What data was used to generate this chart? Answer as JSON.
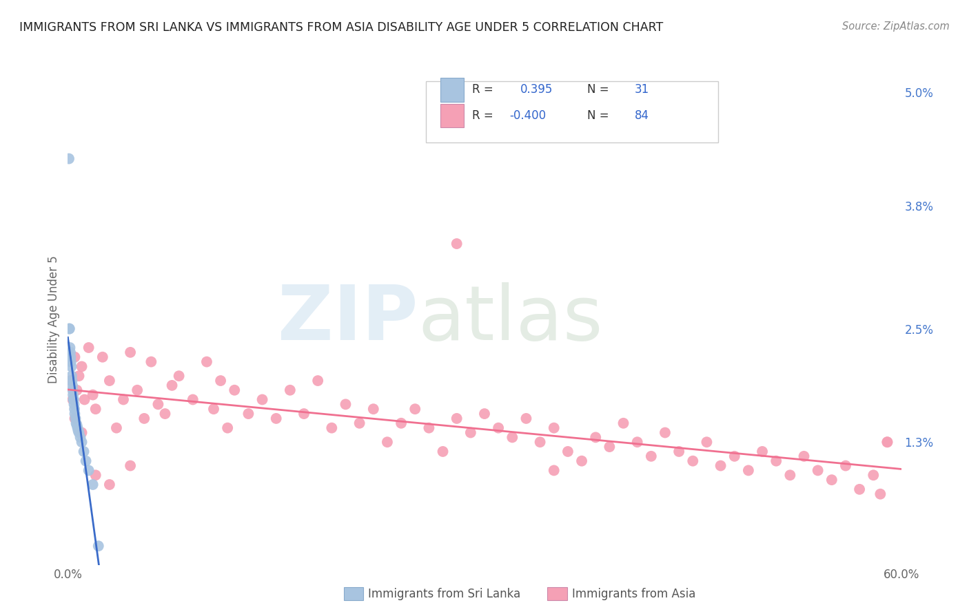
{
  "title": "IMMIGRANTS FROM SRI LANKA VS IMMIGRANTS FROM ASIA DISABILITY AGE UNDER 5 CORRELATION CHART",
  "source": "Source: ZipAtlas.com",
  "ylabel": "Disability Age Under 5",
  "xlim": [
    0.0,
    0.6
  ],
  "ylim": [
    0.0,
    0.052
  ],
  "xtick_positions": [
    0.0,
    0.1,
    0.2,
    0.3,
    0.4,
    0.5,
    0.6
  ],
  "xticklabels": [
    "0.0%",
    "",
    "",
    "",
    "",
    "",
    "60.0%"
  ],
  "ytick_positions": [
    0.0,
    0.013,
    0.025,
    0.038,
    0.05
  ],
  "yticklabels_right": [
    "",
    "1.3%",
    "2.5%",
    "3.8%",
    "5.0%"
  ],
  "R_sri_lanka": 0.395,
  "N_sri_lanka": 31,
  "R_asia": -0.4,
  "N_asia": 84,
  "sri_lanka_color": "#a8c4e0",
  "asia_color": "#f5a0b5",
  "trend_sri_lanka_color": "#3a6bc9",
  "trend_asia_color": "#f07090",
  "background_color": "#ffffff",
  "grid_color": "#e0e0e0",
  "sri_lanka_x": [
    0.0008,
    0.001,
    0.0012,
    0.0015,
    0.0018,
    0.002,
    0.0022,
    0.0025,
    0.0028,
    0.003,
    0.0033,
    0.0035,
    0.0038,
    0.004,
    0.0042,
    0.0045,
    0.0048,
    0.005,
    0.0055,
    0.006,
    0.0065,
    0.007,
    0.0075,
    0.008,
    0.009,
    0.01,
    0.0115,
    0.013,
    0.015,
    0.018,
    0.022
  ],
  "sri_lanka_y": [
    0.043,
    0.025,
    0.025,
    0.023,
    0.0225,
    0.022,
    0.0215,
    0.021,
    0.02,
    0.0195,
    0.019,
    0.0185,
    0.018,
    0.0175,
    0.0175,
    0.017,
    0.0165,
    0.016,
    0.0155,
    0.015,
    0.0148,
    0.0145,
    0.0142,
    0.014,
    0.0135,
    0.013,
    0.012,
    0.011,
    0.01,
    0.0085,
    0.002
  ],
  "asia_x": [
    0.002,
    0.0035,
    0.005,
    0.0065,
    0.008,
    0.01,
    0.012,
    0.015,
    0.018,
    0.02,
    0.025,
    0.03,
    0.035,
    0.04,
    0.045,
    0.05,
    0.055,
    0.06,
    0.065,
    0.07,
    0.075,
    0.08,
    0.09,
    0.1,
    0.105,
    0.11,
    0.115,
    0.12,
    0.13,
    0.14,
    0.15,
    0.16,
    0.17,
    0.18,
    0.19,
    0.2,
    0.21,
    0.22,
    0.23,
    0.24,
    0.25,
    0.26,
    0.27,
    0.28,
    0.29,
    0.3,
    0.31,
    0.32,
    0.33,
    0.34,
    0.35,
    0.36,
    0.37,
    0.38,
    0.39,
    0.4,
    0.41,
    0.42,
    0.43,
    0.44,
    0.45,
    0.46,
    0.47,
    0.48,
    0.49,
    0.5,
    0.51,
    0.52,
    0.53,
    0.54,
    0.55,
    0.56,
    0.57,
    0.58,
    0.585,
    0.59,
    0.005,
    0.01,
    0.02,
    0.03,
    0.045,
    0.28,
    0.35,
    0.59
  ],
  "asia_y": [
    0.0195,
    0.0175,
    0.022,
    0.0185,
    0.02,
    0.021,
    0.0175,
    0.023,
    0.018,
    0.0165,
    0.022,
    0.0195,
    0.0145,
    0.0175,
    0.0225,
    0.0185,
    0.0155,
    0.0215,
    0.017,
    0.016,
    0.019,
    0.02,
    0.0175,
    0.0215,
    0.0165,
    0.0195,
    0.0145,
    0.0185,
    0.016,
    0.0175,
    0.0155,
    0.0185,
    0.016,
    0.0195,
    0.0145,
    0.017,
    0.015,
    0.0165,
    0.013,
    0.015,
    0.0165,
    0.0145,
    0.012,
    0.0155,
    0.014,
    0.016,
    0.0145,
    0.0135,
    0.0155,
    0.013,
    0.0145,
    0.012,
    0.011,
    0.0135,
    0.0125,
    0.015,
    0.013,
    0.0115,
    0.014,
    0.012,
    0.011,
    0.013,
    0.0105,
    0.0115,
    0.01,
    0.012,
    0.011,
    0.0095,
    0.0115,
    0.01,
    0.009,
    0.0105,
    0.008,
    0.0095,
    0.0075,
    0.013,
    0.0155,
    0.014,
    0.0095,
    0.0085,
    0.0105,
    0.034,
    0.01,
    0.013
  ]
}
